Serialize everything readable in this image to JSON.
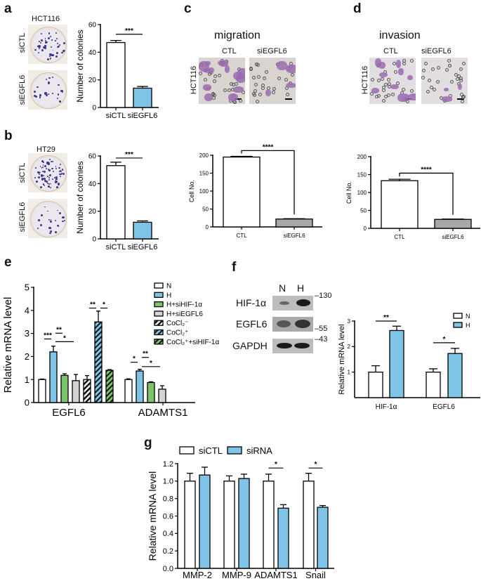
{
  "panels": {
    "a": {
      "label": "a",
      "cell_line": "HCT116",
      "rows": [
        "siCTL",
        "siEGFL6"
      ]
    },
    "b": {
      "label": "b",
      "cell_line": "HT29",
      "rows": [
        "siCTL",
        "siEGFL6"
      ]
    },
    "c": {
      "label": "c",
      "title": "migration",
      "cell_line": "HCT116",
      "cols": [
        "CTL",
        "siEGFL6"
      ]
    },
    "d": {
      "label": "d",
      "title": "invasion",
      "cell_line": "HCT116",
      "cols": [
        "CTL",
        "siEGFL6"
      ]
    },
    "e": {
      "label": "e"
    },
    "f": {
      "label": "f",
      "lanes": [
        "N",
        "H"
      ],
      "proteins": [
        "HIF-1α",
        "EGFL6",
        "GAPDH"
      ],
      "markers": [
        "130",
        "55",
        "43"
      ]
    },
    "g": {
      "label": "g"
    }
  },
  "colors": {
    "white": "#ffffff",
    "blue": "#7fc4e6",
    "green": "#7cc46a",
    "lightgray": "#d4d4d4",
    "gray": "#a8a8a8"
  },
  "chart_data": [
    {
      "id": "a",
      "type": "bar",
      "title": "",
      "xlabel": "",
      "ylabel": "Number of colonies",
      "ylim": [
        0,
        60
      ],
      "ticks": [
        "0",
        "20",
        "40",
        "60"
      ],
      "legend": [],
      "groups": [
        {
          "category": "siCTL",
          "bars": [
            {
              "value": 47,
              "error": 1.5,
              "fill": "#ffffff"
            }
          ]
        },
        {
          "category": "siEGFL6",
          "bars": [
            {
              "value": 14,
              "error": 1.2,
              "fill": "#7fc4e6"
            }
          ]
        }
      ],
      "significance": [
        {
          "label": "***",
          "from": 0,
          "to": 1,
          "y": 53
        }
      ]
    },
    {
      "id": "b",
      "type": "bar",
      "title": "",
      "xlabel": "",
      "ylabel": "Number of colonies",
      "ylim": [
        0,
        60
      ],
      "ticks": [
        "0",
        "20",
        "40",
        "60"
      ],
      "legend": [],
      "groups": [
        {
          "category": "siCTL",
          "bars": [
            {
              "value": 53,
              "error": 2.5,
              "fill": "#ffffff"
            }
          ]
        },
        {
          "category": "siEGFL6",
          "bars": [
            {
              "value": 12,
              "error": 1,
              "fill": "#7fc4e6"
            }
          ]
        }
      ],
      "significance": [
        {
          "label": "***",
          "from": 0,
          "to": 1,
          "y": 58.5
        }
      ]
    },
    {
      "id": "c",
      "type": "bar",
      "title": "migration",
      "xlabel": "",
      "ylabel": "Cell No.",
      "ylim": [
        0,
        200
      ],
      "ticks": [
        "0",
        "50",
        "100",
        "150",
        "200"
      ],
      "legend": [],
      "groups": [
        {
          "category": "CTL",
          "bars": [
            {
              "value": 195,
              "error": 2,
              "fill": "#ffffff"
            }
          ]
        },
        {
          "category": "siEGFL6",
          "bars": [
            {
              "value": 22,
              "error": 1,
              "fill": "#a8a8a8"
            }
          ]
        }
      ],
      "significance": [
        {
          "label": "****",
          "from": 0,
          "to": 1,
          "y": 213,
          "bracket": true
        }
      ]
    },
    {
      "id": "d",
      "type": "bar",
      "title": "invasion",
      "xlabel": "",
      "ylabel": "Cell No.",
      "ylim": [
        0,
        200
      ],
      "ticks": [
        "0",
        "50",
        "100",
        "150",
        "200"
      ],
      "legend": [],
      "groups": [
        {
          "category": "CTL",
          "bars": [
            {
              "value": 133,
              "error": 4,
              "fill": "#ffffff"
            }
          ]
        },
        {
          "category": "siEGFL6",
          "bars": [
            {
              "value": 25,
              "error": 1,
              "fill": "#a8a8a8"
            }
          ]
        }
      ],
      "significance": [
        {
          "label": "****",
          "from": 0,
          "to": 1,
          "y": 154,
          "bracket": true
        }
      ]
    },
    {
      "id": "e",
      "type": "bar",
      "title": "",
      "xlabel": "",
      "ylabel": "Relative mRNA level",
      "ylim": [
        0,
        5
      ],
      "ticks": [
        "0",
        "1",
        "2",
        "3",
        "4",
        "5"
      ],
      "legend": [
        {
          "name": "N",
          "fill": "#ffffff"
        },
        {
          "name": "H",
          "fill": "#7fc4e6"
        },
        {
          "name": "H+siHIF-1α",
          "fill": "#7cc46a"
        },
        {
          "name": "H+siEGFL6",
          "fill": "#d4d4d4"
        },
        {
          "name": "CoCl₂⁻",
          "fill": "#ffffff",
          "hatch": true
        },
        {
          "name": "CoCl₂⁺",
          "fill": "#7fc4e6",
          "hatch": true
        },
        {
          "name": "CoCl₂⁺+siHIF-1α",
          "fill": "#7cc46a",
          "hatch": true
        }
      ],
      "groups": [
        {
          "category": "EGFL6",
          "bars": [
            {
              "series": "N",
              "value": 1.0,
              "error": 0.02,
              "fill": "#ffffff"
            },
            {
              "series": "H",
              "value": 2.2,
              "error": 0.25,
              "fill": "#7fc4e6"
            },
            {
              "series": "H+siHIF-1α",
              "value": 1.18,
              "error": 0.07,
              "fill": "#7cc46a"
            },
            {
              "series": "H+siEGFL6",
              "value": 0.95,
              "error": 0.27,
              "fill": "#d4d4d4"
            },
            {
              "series": "CoCl₂⁻",
              "value": 1.0,
              "error": 0.17,
              "fill": "#ffffff",
              "hatch": true
            },
            {
              "series": "CoCl₂⁺",
              "value": 3.5,
              "error": 0.47,
              "fill": "#7fc4e6",
              "hatch": true
            },
            {
              "series": "CoCl₂⁺+siHIF-1α",
              "value": 1.4,
              "error": 0.03,
              "fill": "#7cc46a",
              "hatch": true
            }
          ]
        },
        {
          "category": "ADAMTS1",
          "bars": [
            {
              "series": "N",
              "value": 1.0,
              "error": 0.03,
              "fill": "#ffffff"
            },
            {
              "series": "H",
              "value": 1.37,
              "error": 0.07,
              "fill": "#7fc4e6"
            },
            {
              "series": "H+siHIF-1α",
              "value": 0.87,
              "error": 0.03,
              "fill": "#7cc46a"
            },
            {
              "series": "H+siEGFL6",
              "value": 0.58,
              "error": 0.15,
              "fill": "#d4d4d4"
            }
          ]
        }
      ],
      "significance": [
        {
          "label": "***",
          "from": 0,
          "to": 1,
          "y": 2.76
        },
        {
          "label": "**",
          "from": 1,
          "to": 2,
          "y": 3.01
        },
        {
          "label": "*",
          "from": 1,
          "to": 3,
          "y": 2.64
        },
        {
          "label": "**",
          "from": 4,
          "to": 5,
          "y": 4.1
        },
        {
          "label": "*",
          "from": 5,
          "to": 6,
          "y": 4.1
        },
        {
          "label": "*",
          "from": 7,
          "to": 8,
          "y": 1.75
        },
        {
          "label": "**",
          "from": 8,
          "to": 9,
          "y": 1.96
        },
        {
          "label": "*",
          "from": 8,
          "to": 10,
          "y": 1.56
        }
      ]
    },
    {
      "id": "f",
      "type": "bar",
      "title": "",
      "xlabel": "",
      "ylabel": "Relative mRNA level",
      "ylim": [
        0,
        3
      ],
      "ticks": [
        "1",
        "2",
        "3"
      ],
      "legend": [
        {
          "name": "N",
          "fill": "#ffffff"
        },
        {
          "name": "H",
          "fill": "#7fc4e6"
        }
      ],
      "groups": [
        {
          "category": "HIF-1α",
          "bars": [
            {
              "series": "N",
              "value": 1.0,
              "error": 0.25,
              "fill": "#ffffff"
            },
            {
              "series": "H",
              "value": 2.63,
              "error": 0.17,
              "fill": "#7fc4e6"
            }
          ]
        },
        {
          "category": "EGFL6",
          "bars": [
            {
              "series": "N",
              "value": 1.0,
              "error": 0.13,
              "fill": "#ffffff"
            },
            {
              "series": "H",
              "value": 1.73,
              "error": 0.2,
              "fill": "#7fc4e6"
            }
          ]
        }
      ],
      "significance": [
        {
          "label": "**",
          "from": 0,
          "to": 1,
          "y": 3.0
        },
        {
          "label": "*",
          "from": 2,
          "to": 3,
          "y": 2.15
        }
      ]
    },
    {
      "id": "g",
      "type": "bar",
      "title": "",
      "xlabel": "",
      "ylabel": "Relative mRNA level",
      "ylim": [
        0,
        1.2
      ],
      "ticks": [
        "0.0",
        "0.2",
        "0.4",
        "0.6",
        "0.8",
        "1.0",
        "1.2"
      ],
      "legend": [
        {
          "name": "siCTL",
          "fill": "#ffffff"
        },
        {
          "name": "siRNA",
          "fill": "#7fc4e6"
        }
      ],
      "groups": [
        {
          "category": "MMP-2",
          "bars": [
            {
              "series": "siCTL",
              "value": 1.0,
              "error": 0.09,
              "fill": "#ffffff"
            },
            {
              "series": "siRNA",
              "value": 1.07,
              "error": 0.09,
              "fill": "#7fc4e6"
            }
          ]
        },
        {
          "category": "MMP-9",
          "bars": [
            {
              "series": "siCTL",
              "value": 1.0,
              "error": 0.06,
              "fill": "#ffffff"
            },
            {
              "series": "siRNA",
              "value": 1.03,
              "error": 0.05,
              "fill": "#7fc4e6"
            }
          ]
        },
        {
          "category": "ADAMTS1",
          "bars": [
            {
              "series": "siCTL",
              "value": 1.0,
              "error": 0.08,
              "fill": "#ffffff"
            },
            {
              "series": "siRNA",
              "value": 0.69,
              "error": 0.04,
              "fill": "#7fc4e6"
            }
          ]
        },
        {
          "category": "Snail",
          "bars": [
            {
              "series": "siCTL",
              "value": 1.0,
              "error": 0.09,
              "fill": "#ffffff"
            },
            {
              "series": "siRNA",
              "value": 0.7,
              "error": 0.02,
              "fill": "#7fc4e6"
            }
          ]
        }
      ],
      "significance": [
        {
          "label": "*",
          "from": 4,
          "to": 5,
          "y": 1.15
        },
        {
          "label": "*",
          "from": 6,
          "to": 7,
          "y": 1.15
        }
      ]
    }
  ]
}
